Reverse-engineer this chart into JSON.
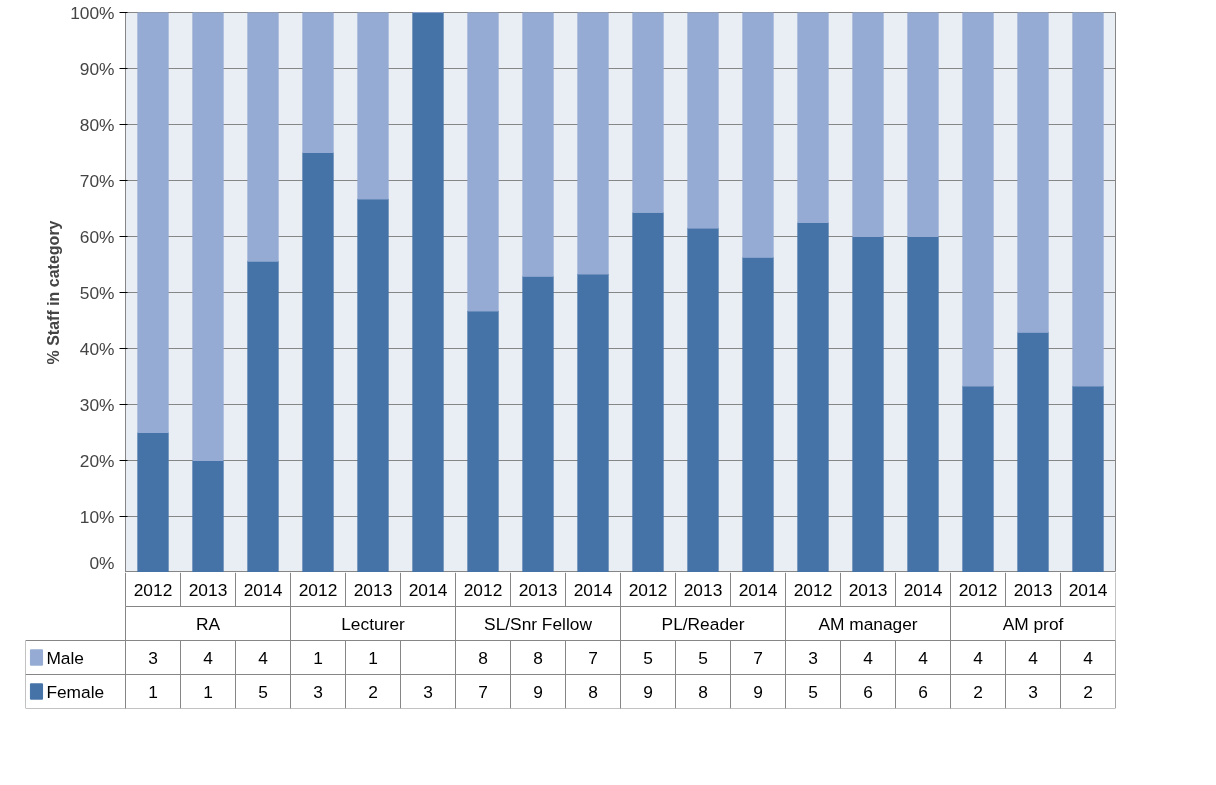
{
  "chart_data": {
    "type": "bar",
    "stacked": true,
    "ylabel": "% Staff in category",
    "categories": [
      "2012",
      "2013",
      "2014",
      "2012",
      "2013",
      "2014",
      "2012",
      "2013",
      "2014",
      "2012",
      "2013",
      "2014",
      "2012",
      "2013",
      "2014",
      "2012",
      "2013",
      "2014"
    ],
    "annotations": [
      "RA",
      "Lecturer",
      "SL/Snr Fellow",
      "PL/Reader",
      "AM manager",
      "AM prof",
      "3",
      "4",
      "4",
      "1",
      "1",
      null,
      "8",
      "8",
      "7",
      "5",
      "5",
      "7",
      "3",
      "4",
      "4",
      "4",
      "4",
      "4",
      "1",
      "1",
      "5",
      "3",
      "2",
      "3",
      "7",
      "9",
      "8",
      "9",
      "8",
      "9",
      "5",
      "6",
      "6",
      "2",
      "3",
      "2"
    ],
    "series": [
      {
        "name": "Female",
        "color": "#4673a7",
        "values": [
          25,
          20,
          55.6,
          75,
          66.7,
          100,
          46.7,
          52.9,
          53.3,
          64.3,
          61.5,
          56.3,
          62.5,
          60,
          60,
          33.3,
          42.9,
          33.3
        ]
      },
      {
        "name": "Male",
        "color": "#95abd3",
        "values": [
          75,
          80,
          44.4,
          25,
          33.3,
          0,
          53.3,
          47.1,
          46.7,
          35.7,
          38.5,
          43.7,
          37.5,
          40,
          40,
          66.7,
          57.1,
          66.7
        ]
      }
    ],
    "ylim": [
      0,
      100
    ],
    "yticks": [
      {
        "value": 0,
        "label": "0%"
      },
      {
        "value": 10,
        "label": "10%"
      },
      {
        "value": 20,
        "label": "20%"
      },
      {
        "value": 30,
        "label": "30%"
      },
      {
        "value": 40,
        "label": "40%"
      },
      {
        "value": 50,
        "label": "50%"
      },
      {
        "value": 60,
        "label": "60%"
      },
      {
        "value": 70,
        "label": "70%"
      },
      {
        "value": 80,
        "label": "80%"
      },
      {
        "value": 90,
        "label": "90%"
      },
      {
        "value": 100,
        "label": "100%"
      }
    ],
    "grid": "y",
    "legend": "bottom left"
  }
}
